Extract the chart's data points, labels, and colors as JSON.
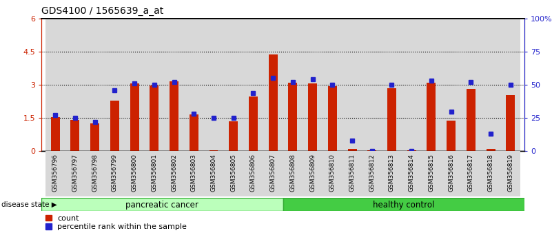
{
  "title": "GDS4100 / 1565639_a_at",
  "samples": [
    "GSM356796",
    "GSM356797",
    "GSM356798",
    "GSM356799",
    "GSM356800",
    "GSM356801",
    "GSM356802",
    "GSM356803",
    "GSM356804",
    "GSM356805",
    "GSM356806",
    "GSM356807",
    "GSM356808",
    "GSM356809",
    "GSM356810",
    "GSM356811",
    "GSM356812",
    "GSM356813",
    "GSM356814",
    "GSM356815",
    "GSM356816",
    "GSM356817",
    "GSM356818",
    "GSM356819"
  ],
  "count_values": [
    1.55,
    1.42,
    1.27,
    2.28,
    3.05,
    2.98,
    3.15,
    1.65,
    0.04,
    1.35,
    2.48,
    4.38,
    3.1,
    3.05,
    2.95,
    0.12,
    0.04,
    2.85,
    0.04,
    3.1,
    1.38,
    2.82,
    0.12,
    2.52
  ],
  "percentile_values": [
    27,
    25,
    22,
    46,
    51,
    50,
    52,
    28,
    25,
    25,
    44,
    55,
    52,
    54,
    50,
    8,
    0,
    50,
    0,
    53,
    30,
    52,
    13,
    50
  ],
  "bar_color": "#cc2200",
  "dot_color": "#2222cc",
  "ylim_left": [
    0,
    6
  ],
  "ylim_right": [
    0,
    100
  ],
  "yticks_left": [
    0,
    1.5,
    3.0,
    4.5,
    6
  ],
  "ytick_labels_left": [
    "0",
    "1.5",
    "3",
    "4.5",
    "6"
  ],
  "yticks_right": [
    0,
    25,
    50,
    75,
    100
  ],
  "ytick_labels_right": [
    "0",
    "25",
    "50",
    "75",
    "100%"
  ],
  "hlines": [
    1.5,
    3.0,
    4.5
  ],
  "col_bg_color": "#d8d8d8",
  "plot_bg": "#ffffff",
  "pancreatic_color": "#bbffbb",
  "healthy_color": "#44cc44",
  "bar_width": 0.45,
  "pc_count": 12,
  "hc_count": 12
}
